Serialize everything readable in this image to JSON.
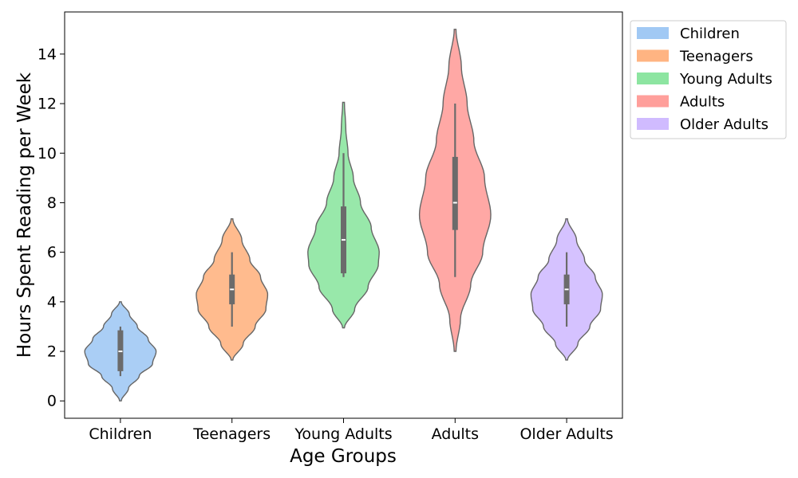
{
  "chart_data": {
    "type": "violin",
    "xlabel": "Age Groups",
    "ylabel": "Hours Spent Reading per Week",
    "ylim": [
      -0.7,
      15.7
    ],
    "yticks": [
      0,
      2,
      4,
      6,
      8,
      10,
      12,
      14
    ],
    "legend_position": "outside-top-right",
    "categories": [
      "Children",
      "Teenagers",
      "Young Adults",
      "Adults",
      "Older Adults"
    ],
    "series": [
      {
        "name": "Children",
        "color": "#a1c9f4",
        "min": 1,
        "q1": 1.2,
        "median": 2,
        "q3": 2.85,
        "max": 3,
        "density": [
          [
            0,
            0.02
          ],
          [
            0.5,
            0.18
          ],
          [
            1,
            0.42
          ],
          [
            1.5,
            0.72
          ],
          [
            2,
            0.8
          ],
          [
            2.5,
            0.62
          ],
          [
            3,
            0.38
          ],
          [
            3.5,
            0.2
          ],
          [
            4,
            0.02
          ]
        ]
      },
      {
        "name": "Teenagers",
        "color": "#ffb482",
        "min": 3,
        "q1": 3.9,
        "median": 4.5,
        "q3": 5.1,
        "max": 6,
        "density": [
          [
            1.65,
            0.02
          ],
          [
            2.3,
            0.25
          ],
          [
            3,
            0.52
          ],
          [
            3.7,
            0.76
          ],
          [
            4.3,
            0.8
          ],
          [
            5,
            0.64
          ],
          [
            5.7,
            0.4
          ],
          [
            6.5,
            0.22
          ],
          [
            7.35,
            0.02
          ]
        ]
      },
      {
        "name": "Young Adults",
        "color": "#8de5a1",
        "min": 5,
        "q1": 5.15,
        "median": 6.5,
        "q3": 7.85,
        "max": 10,
        "density": [
          [
            2.95,
            0.02
          ],
          [
            3.7,
            0.25
          ],
          [
            4.6,
            0.55
          ],
          [
            5.5,
            0.78
          ],
          [
            6,
            0.8
          ],
          [
            7,
            0.62
          ],
          [
            8,
            0.38
          ],
          [
            9,
            0.22
          ],
          [
            10,
            0.1
          ],
          [
            11,
            0.05
          ],
          [
            12.05,
            0.02
          ]
        ]
      },
      {
        "name": "Adults",
        "color": "#ff9f9b",
        "min": 5,
        "q1": 6.9,
        "median": 8,
        "q3": 9.85,
        "max": 12,
        "density": [
          [
            2,
            0.02
          ],
          [
            3.3,
            0.12
          ],
          [
            4.7,
            0.35
          ],
          [
            6,
            0.62
          ],
          [
            7.5,
            0.8
          ],
          [
            9,
            0.66
          ],
          [
            10.5,
            0.42
          ],
          [
            12,
            0.27
          ],
          [
            13.5,
            0.14
          ],
          [
            15,
            0.02
          ]
        ]
      },
      {
        "name": "Older Adults",
        "color": "#d0bbff",
        "min": 3,
        "q1": 3.9,
        "median": 4.5,
        "q3": 5.1,
        "max": 6,
        "density": [
          [
            1.65,
            0.02
          ],
          [
            2.3,
            0.25
          ],
          [
            3,
            0.52
          ],
          [
            3.7,
            0.76
          ],
          [
            4.3,
            0.8
          ],
          [
            5,
            0.64
          ],
          [
            5.7,
            0.4
          ],
          [
            6.5,
            0.22
          ],
          [
            7.35,
            0.02
          ]
        ]
      }
    ]
  }
}
